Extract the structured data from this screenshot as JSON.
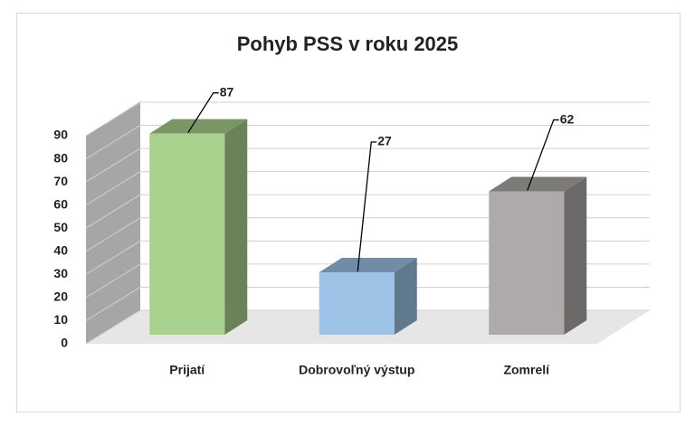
{
  "chart_data": {
    "type": "bar3d",
    "title": "Pohyb PSS v roku 2025",
    "categories": [
      "Prijatí",
      "Dobrovoľný výstup",
      "Zomrelí"
    ],
    "values": [
      87,
      27,
      62
    ],
    "colors": [
      "#a9d18e",
      "#9dc3e6",
      "#aeaaaa"
    ],
    "ylim": [
      0,
      90
    ],
    "yticks": [
      0,
      10,
      20,
      30,
      40,
      50,
      60,
      70,
      80,
      90
    ],
    "grid": true
  }
}
